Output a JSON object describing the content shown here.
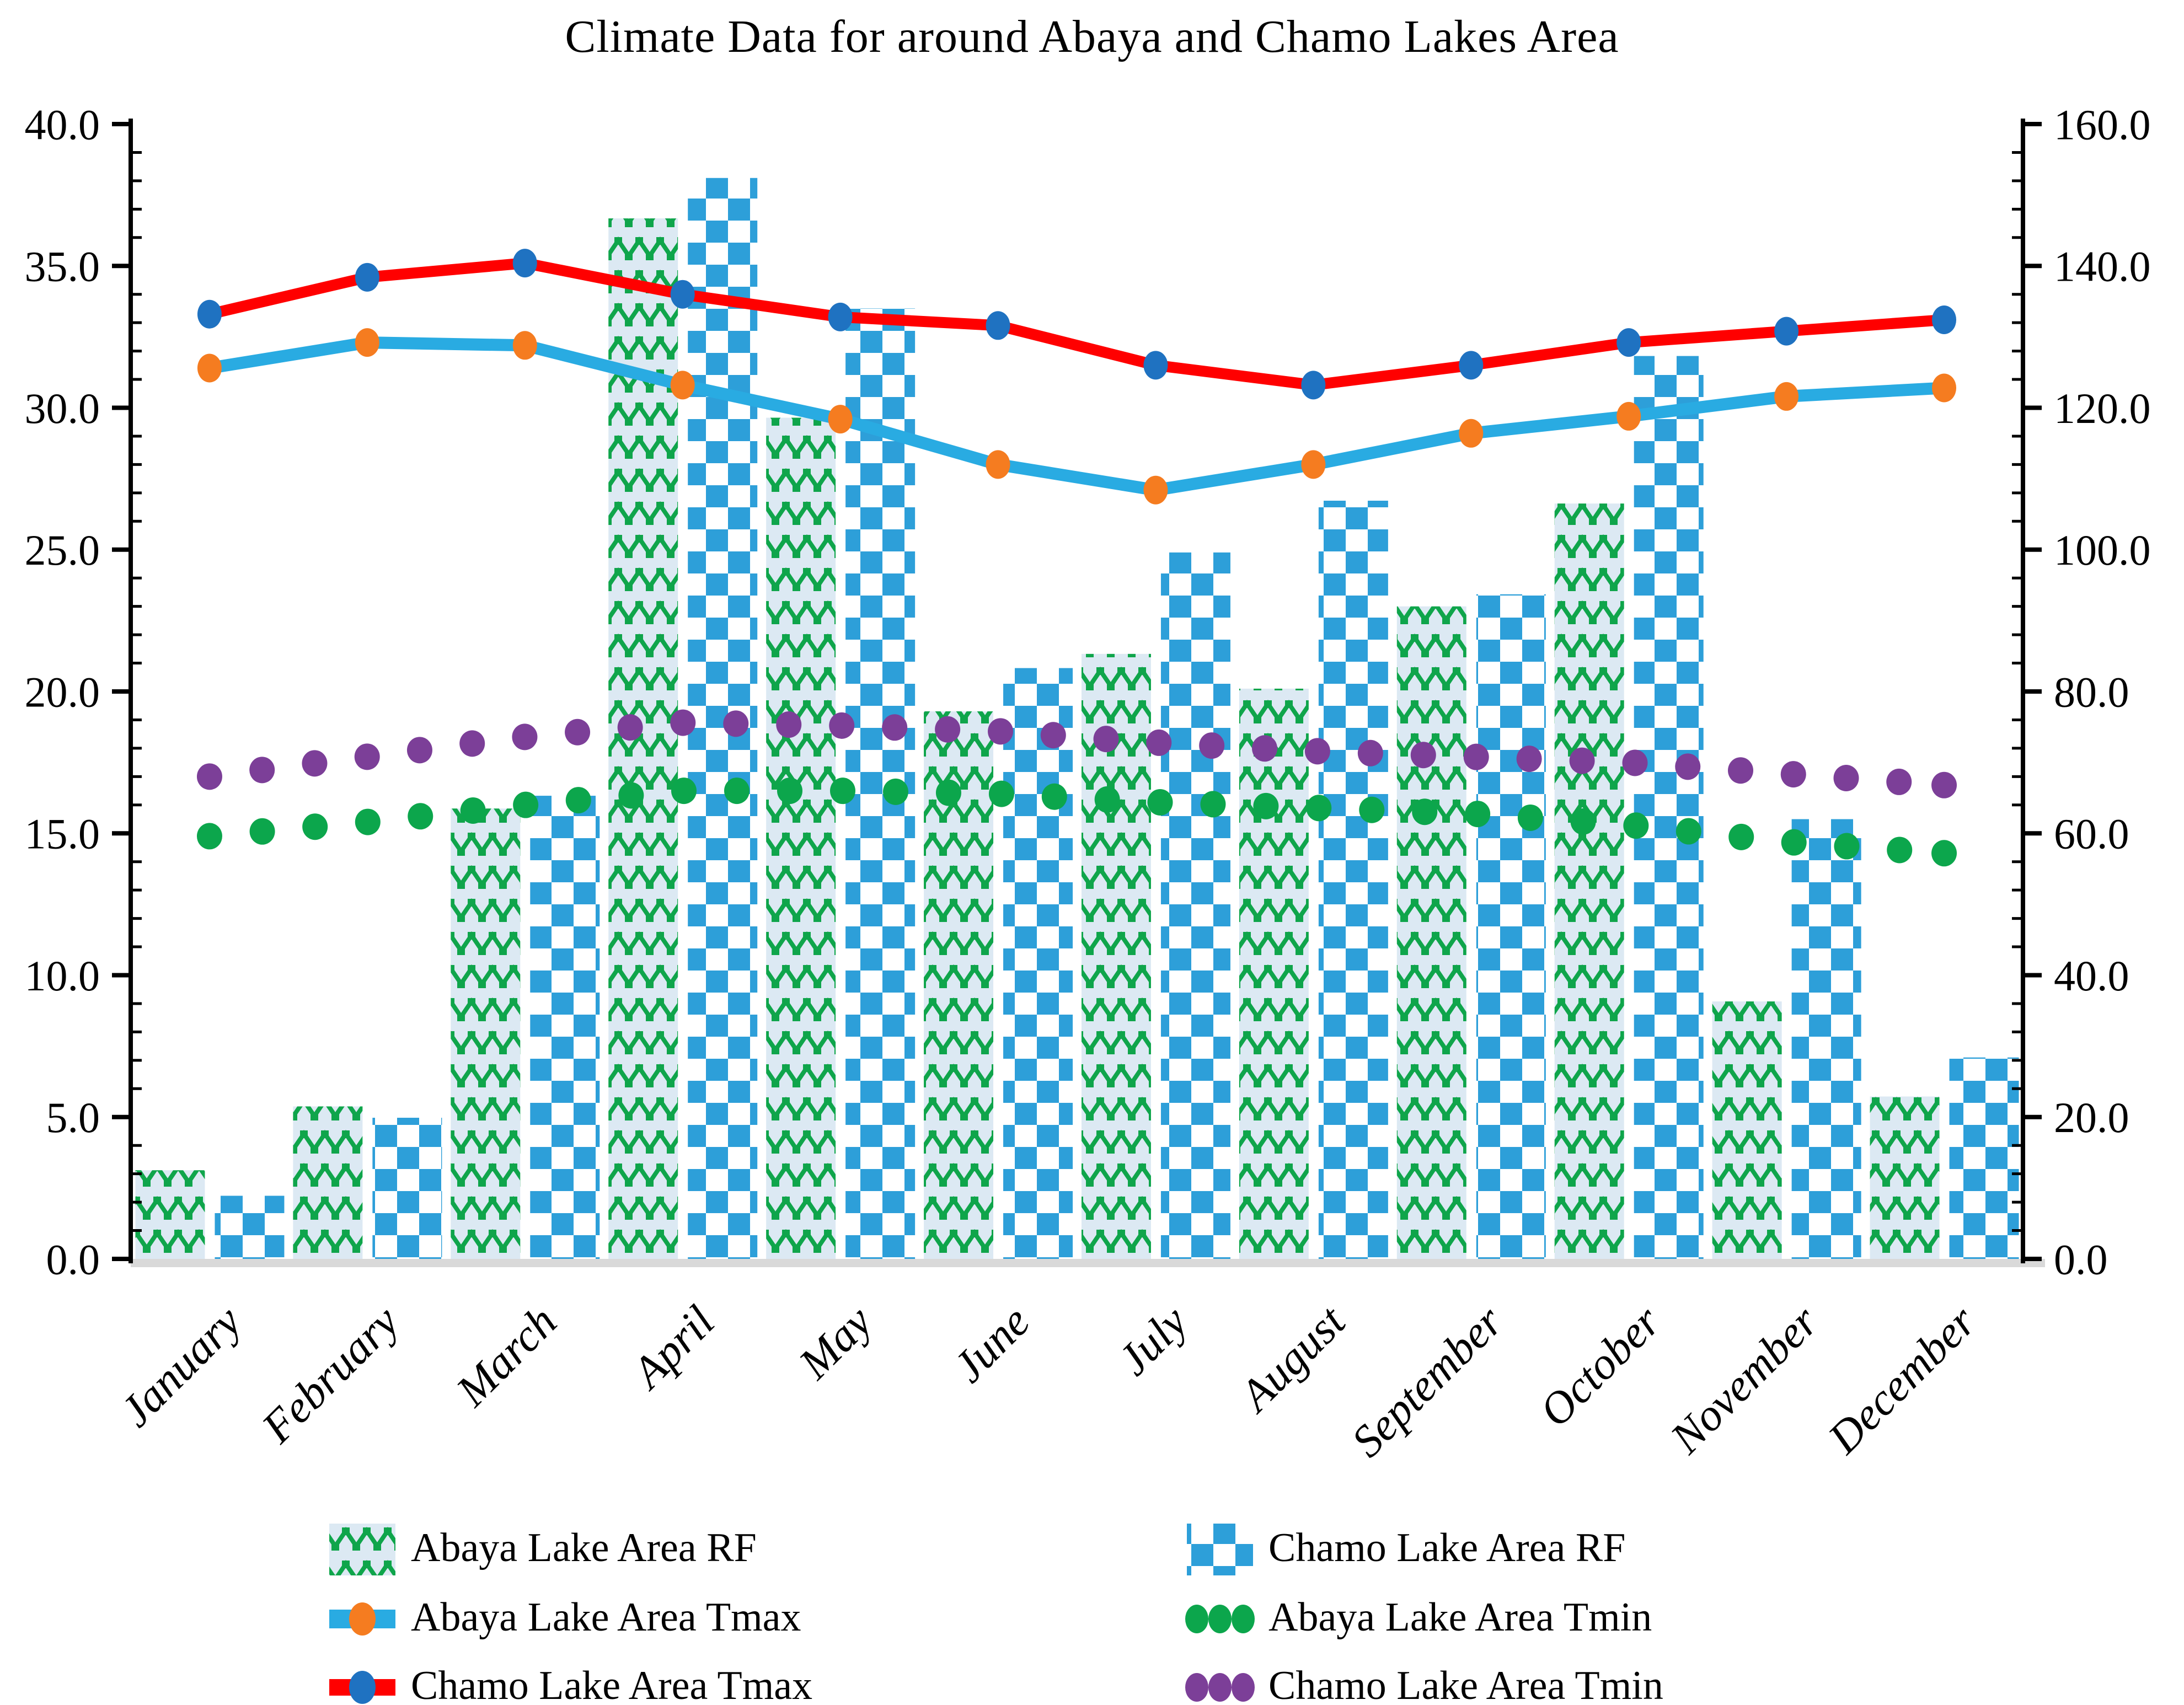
{
  "title": "Climate Data for around Abaya and Chamo Lakes Area",
  "chart_data": {
    "type": "combo-bar-line",
    "categories": [
      "January",
      "February",
      "March",
      "April",
      "May",
      "June",
      "July",
      "August",
      "September",
      "October",
      "November",
      "December"
    ],
    "series": [
      {
        "name": "Abaya Lake Area RF",
        "type": "bar",
        "axis": "right",
        "style": "green-zigzag-pattern",
        "values": [
          12.5,
          21.5,
          63.5,
          146.7,
          118.6,
          77.2,
          85.3,
          80.4,
          92.0,
          106.5,
          36.3,
          22.9
        ]
      },
      {
        "name": "Chamo Lake Area RF",
        "type": "bar",
        "axis": "right",
        "style": "blue-checker-pattern",
        "values": [
          8.9,
          19.9,
          65.3,
          152.4,
          134.0,
          83.3,
          99.6,
          106.9,
          93.7,
          127.3,
          62.0,
          28.4
        ]
      },
      {
        "name": "Abaya Lake Area Tmax",
        "type": "line",
        "axis": "left",
        "line_color": "#29ABE2",
        "marker_color": "#F57C20",
        "values": [
          31.4,
          32.3,
          32.2,
          30.8,
          29.6,
          28.0,
          27.1,
          28.0,
          29.1,
          29.7,
          30.4,
          30.7
        ]
      },
      {
        "name": "Abaya Lake Area Tmin",
        "type": "dotted-line",
        "axis": "left",
        "line_color": "#0CA64C",
        "values": [
          14.9,
          15.4,
          16.0,
          16.5,
          16.5,
          16.4,
          16.1,
          15.9,
          15.7,
          15.3,
          14.7,
          14.3
        ]
      },
      {
        "name": "Chamo Lake Area Tmax",
        "type": "line",
        "axis": "left",
        "line_color": "#FF0000",
        "marker_color": "#1F72C1",
        "values": [
          33.3,
          34.6,
          35.1,
          34.0,
          33.2,
          32.9,
          31.5,
          30.8,
          31.5,
          32.3,
          32.7,
          33.1
        ]
      },
      {
        "name": "Chamo Lake Area Tmin",
        "type": "dotted-line",
        "axis": "left",
        "line_color": "#7C3F98",
        "values": [
          17.0,
          17.7,
          18.4,
          18.9,
          18.8,
          18.6,
          18.2,
          17.9,
          17.7,
          17.5,
          17.1,
          16.7
        ]
      }
    ],
    "left_axis": {
      "min": 0,
      "max": 40,
      "major_step": 5,
      "minor_step": 1,
      "tick_labels": [
        "40.0",
        "35.0",
        "30.0",
        "25.0",
        "20.0",
        "15.0",
        "10.0",
        "5.0",
        "0.0"
      ]
    },
    "right_axis": {
      "min": 0,
      "max": 160,
      "major_step": 20,
      "minor_step": 4,
      "tick_labels": [
        "160.0",
        "140.0",
        "120.0",
        "100.0",
        "80.0",
        "60.0",
        "40.0",
        "20.0",
        "0.0"
      ]
    },
    "grid": false,
    "legend_position": "bottom-two-columns"
  },
  "legend": {
    "items": [
      {
        "label": "Abaya Lake Area RF",
        "swatch": "green-zigzag-pattern",
        "col": 0,
        "row": 0
      },
      {
        "label": "Chamo Lake Area RF",
        "swatch": "blue-checker-pattern",
        "col": 1,
        "row": 0
      },
      {
        "label": "Abaya Lake Area Tmax",
        "swatch": "cyan-line-orange-marker",
        "col": 0,
        "row": 1
      },
      {
        "label": "Abaya Lake Area Tmin",
        "swatch": "green-dots",
        "col": 1,
        "row": 1
      },
      {
        "label": "Chamo Lake Area Tmax",
        "swatch": "red-line-blue-marker",
        "col": 0,
        "row": 2
      },
      {
        "label": "Chamo Lake Area Tmin",
        "swatch": "purple-dots",
        "col": 1,
        "row": 2
      }
    ]
  },
  "colors": {
    "abaya_rf_bg": "#DCE9F3",
    "abaya_rf_pattern": "#0FA54B",
    "chamo_rf_pattern": "#2D9FD9",
    "abaya_tmax_line": "#29ABE2",
    "abaya_tmax_marker": "#F57C20",
    "chamo_tmax_line": "#FF0000",
    "chamo_tmax_marker": "#1F72C1",
    "abaya_tmin_dots": "#0CA64C",
    "chamo_tmin_dots": "#7C3F98",
    "axis": "#000000",
    "baseline_shadow": "#D9D9D9"
  }
}
